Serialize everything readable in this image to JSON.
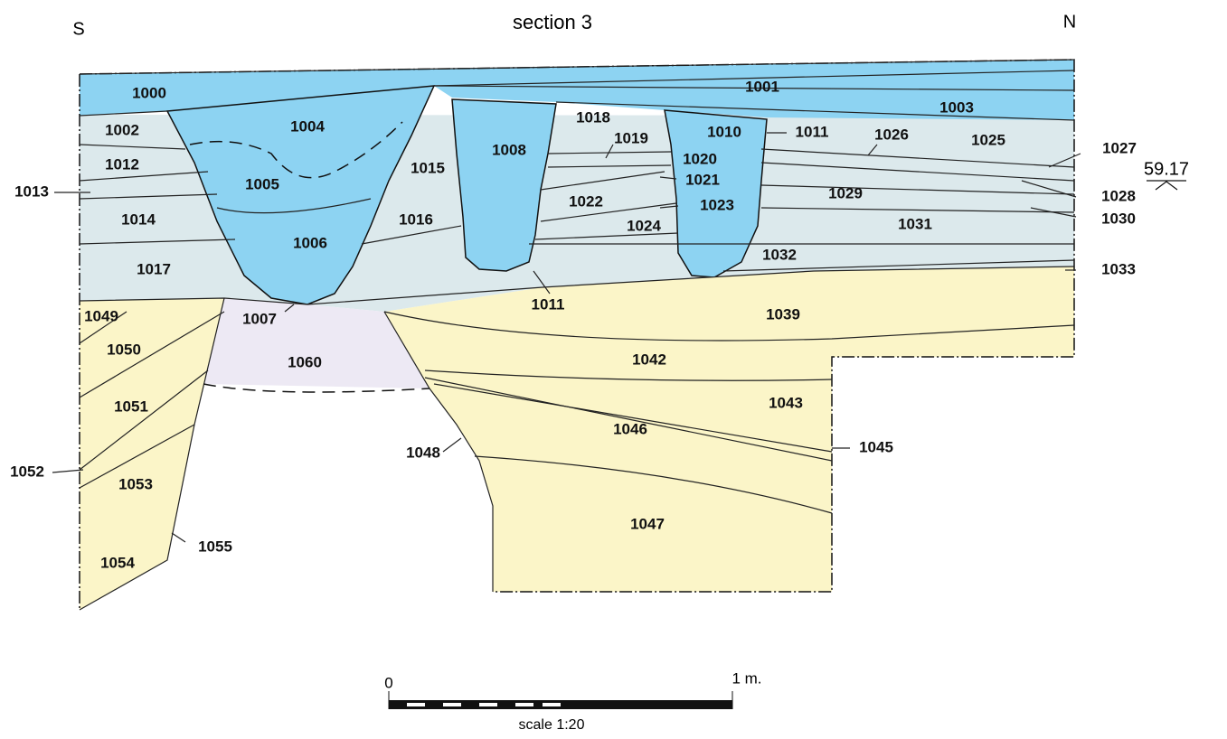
{
  "header": {
    "title": "section 3",
    "south": "S",
    "north": "N"
  },
  "elevation": "59.17",
  "units": [
    "1000",
    "1001",
    "1003",
    "1002",
    "1004",
    "1018",
    "1008",
    "1010",
    "1011",
    "1026",
    "1025",
    "1019",
    "1020",
    "1012",
    "1005",
    "1015",
    "1021",
    "1027",
    "1013",
    "1029",
    "1028",
    "1022",
    "1023",
    "1014",
    "1016",
    "1024",
    "1031",
    "1030",
    "1006",
    "1032",
    "1017",
    "1033",
    "1011",
    "1049",
    "1007",
    "1039",
    "1050",
    "1060",
    "1042",
    "1051",
    "1043",
    "1046",
    "1048",
    "1045",
    "1052",
    "1053",
    "1047",
    "1055",
    "1054"
  ],
  "scale": {
    "start": "0",
    "end": "1 m.",
    "caption": "scale 1:20"
  }
}
